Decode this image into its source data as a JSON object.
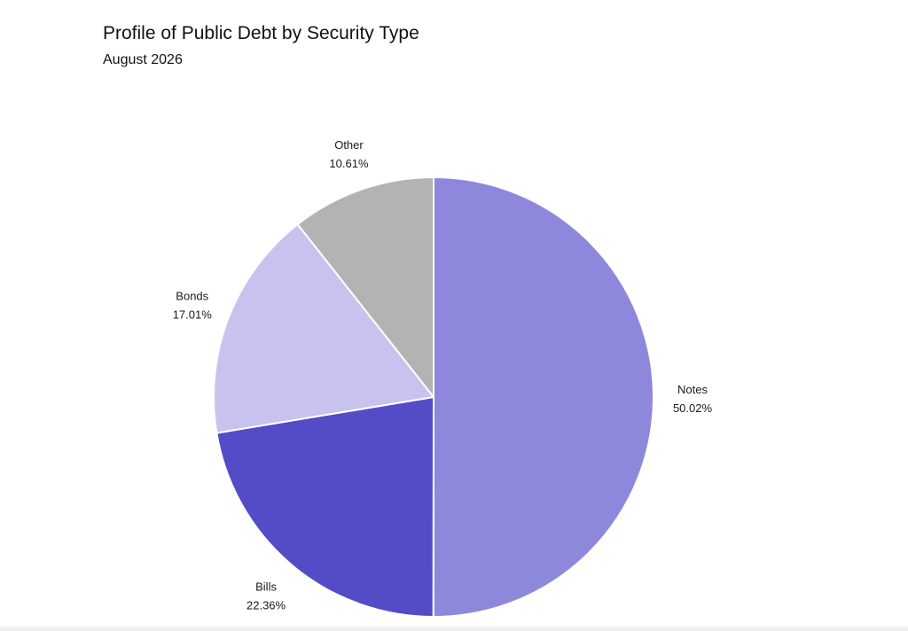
{
  "chart_data": {
    "type": "pie",
    "title": "Profile of Public Debt by Security Type",
    "subtitle": "August 2026",
    "slices": [
      {
        "label": "Notes",
        "value": 50.02,
        "display": "50.02%",
        "color": "#8e88dc"
      },
      {
        "label": "Bills",
        "value": 22.36,
        "display": "22.36%",
        "color": "#544bc7"
      },
      {
        "label": "Bonds",
        "value": 17.01,
        "display": "17.01%",
        "color": "#c8c3ee"
      },
      {
        "label": "Other",
        "value": 10.61,
        "display": "10.61%",
        "color": "#b3b3b3"
      }
    ],
    "start": "12 o'clock",
    "direction": "clockwise",
    "labels": "outside"
  }
}
